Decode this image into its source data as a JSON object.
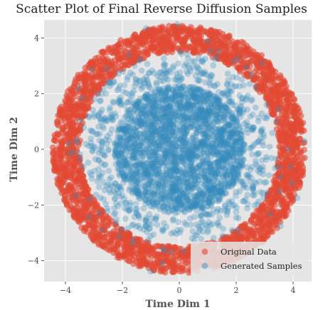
{
  "chart_data": {
    "type": "scatter",
    "title": "Scatter Plot of Final Reverse Diffusion Samples",
    "xlabel": "Time Dim 1",
    "ylabel": "Time Dim 2",
    "xlim": [
      -4.75,
      4.65
    ],
    "ylim": [
      -4.75,
      4.65
    ],
    "xticks": [
      -4,
      -2,
      0,
      2,
      4
    ],
    "yticks": [
      -4,
      -2,
      0,
      2,
      4
    ],
    "tick_labels": {
      "x": [
        "−4",
        "−2",
        "0",
        "2",
        "4"
      ],
      "y": [
        "−4",
        "−2",
        "0",
        "2",
        "4"
      ]
    },
    "grid": true,
    "background": "#e5e5e5",
    "legend": {
      "placement": "bottom-right"
    },
    "series": [
      {
        "name": "Original Data",
        "color": "#E24A33",
        "alpha": 0.6,
        "distribution": "ring",
        "ring_radius_range": [
          3.5,
          4.45
        ],
        "point_count": 2600
      },
      {
        "name": "Generated Samples",
        "color": "#348ABD",
        "alpha": 0.3,
        "distribution": "disk with scattered outer points",
        "inner_disk_radius": 2.3,
        "outer_scatter_radius_range": [
          2.2,
          4.5
        ],
        "point_count": 3000
      }
    ]
  }
}
